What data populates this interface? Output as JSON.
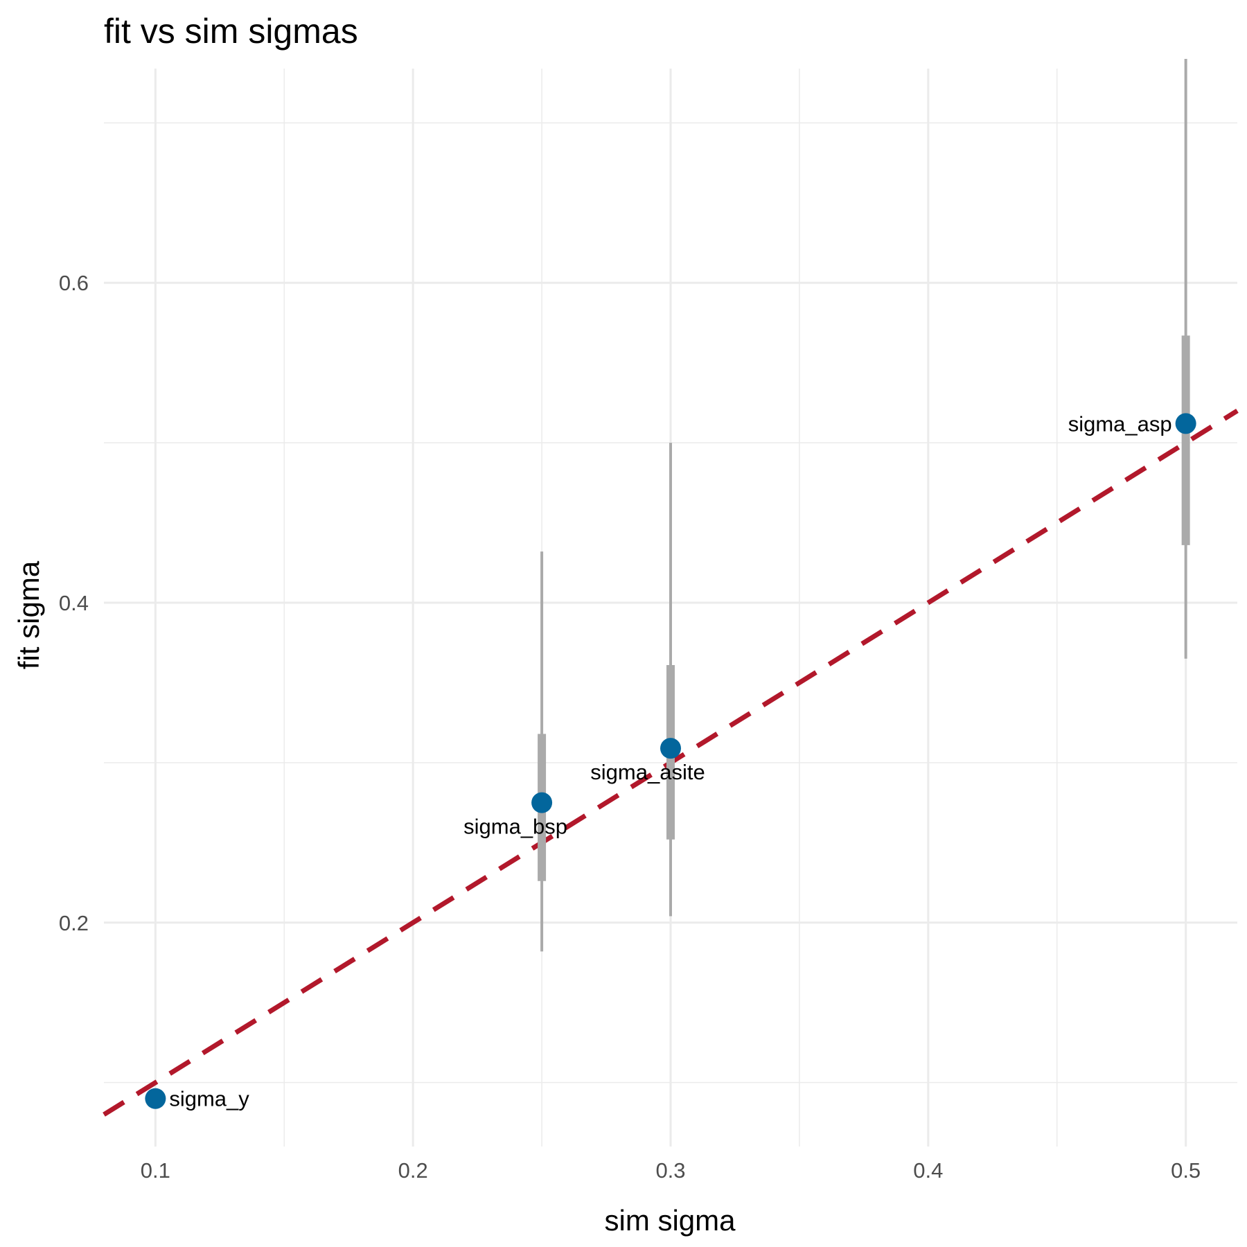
{
  "chart_data": {
    "type": "scatter",
    "title": "fit vs sim sigmas",
    "xlabel": "sim sigma",
    "ylabel": "fit sigma",
    "xlim": [
      0.08,
      0.52
    ],
    "ylim": [
      0.06,
      0.74
    ],
    "x_ticks": [
      {
        "value": 0.1,
        "label": "0.1"
      },
      {
        "value": 0.2,
        "label": "0.2"
      },
      {
        "value": 0.3,
        "label": "0.3"
      },
      {
        "value": 0.4,
        "label": "0.4"
      },
      {
        "value": 0.5,
        "label": "0.5"
      }
    ],
    "x_minor": [
      0.15,
      0.25,
      0.35,
      0.45
    ],
    "y_ticks": [
      {
        "value": 0.2,
        "label": "0.2"
      },
      {
        "value": 0.4,
        "label": "0.4"
      },
      {
        "value": 0.6,
        "label": "0.6"
      }
    ],
    "y_minor": [
      0.1,
      0.3,
      0.5,
      0.7
    ],
    "grid": true,
    "reference_line": {
      "slope": 1,
      "intercept": 0,
      "style": "dashed",
      "color": "#b2182b"
    },
    "points": [
      {
        "label": "sigma_y",
        "x": 0.1,
        "y": 0.09,
        "ci_inner": null,
        "ci_outer": null,
        "label_pos": "right"
      },
      {
        "label": "sigma_bsp",
        "x": 0.25,
        "y": 0.275,
        "ci_inner": [
          0.226,
          0.318
        ],
        "ci_outer": [
          0.182,
          0.432
        ],
        "label_pos": "below-left"
      },
      {
        "label": "sigma_asite",
        "x": 0.3,
        "y": 0.309,
        "ci_inner": [
          0.252,
          0.361
        ],
        "ci_outer": [
          0.204,
          0.5
        ],
        "label_pos": "below"
      },
      {
        "label": "sigma_asp",
        "x": 0.5,
        "y": 0.512,
        "ci_inner": [
          0.436,
          0.567
        ],
        "ci_outer": [
          0.365,
          0.74
        ],
        "label_pos": "left"
      }
    ],
    "colors": {
      "point": "#03669c",
      "interval": "#aaaaaa",
      "grid": "#ebebeb",
      "reference": "#b2182b"
    }
  }
}
